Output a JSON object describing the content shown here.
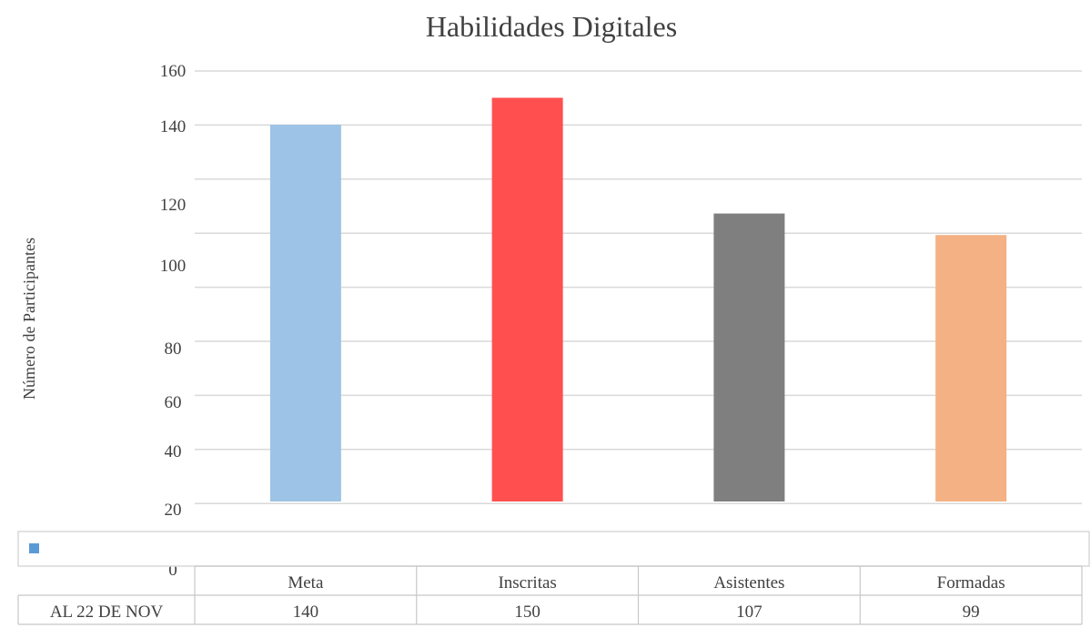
{
  "chart_data": {
    "type": "bar",
    "title": "Habilidades Digitales",
    "ylabel": "Número de Participantes",
    "xlabel": "",
    "categories": [
      "Meta",
      "Inscritas",
      "Asistentes",
      "Formadas"
    ],
    "series": [
      {
        "name": "AL 22 DE NOV",
        "values": [
          140,
          150,
          107,
          99
        ]
      }
    ],
    "y_tick_labels": [
      "0",
      "20",
      "40",
      "60",
      "80",
      "100",
      "120",
      "140",
      "160"
    ],
    "ylim": [
      0,
      160
    ],
    "grid": true,
    "legend": "data-table",
    "colors": [
      "#9dc3e6",
      "#ff4f4f",
      "#7f7f7f",
      "#f4b183"
    ],
    "legend_marker_color": "#5b9bd5"
  }
}
